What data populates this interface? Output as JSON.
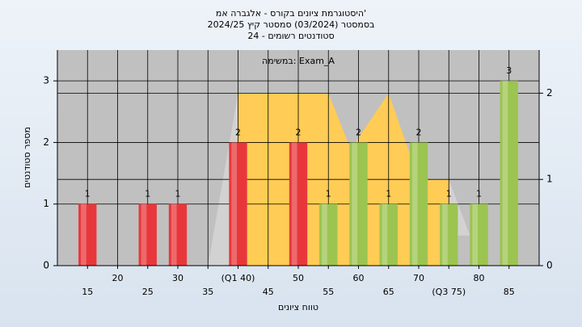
{
  "chart_data": {
    "type": "bar",
    "title_lines": [
      "היסטוגרמת ציונים בקורס - אלגברה אמ'",
      "בסמסטר (03/2024) סמסטר קיץ 2024/25",
      "סטודנטים רשומים - 24"
    ],
    "annotation": "במשימה: Exam_A",
    "x_label": "טווח ציונים",
    "y_label": "מספר סטודנטים",
    "x": [
      15,
      25,
      30,
      40,
      50,
      55,
      60,
      65,
      70,
      75,
      80,
      85
    ],
    "values": [
      1,
      1,
      1,
      2,
      2,
      1,
      2,
      1,
      2,
      1,
      1,
      3
    ],
    "colors": [
      "#e8373b",
      "#e8373b",
      "#e8373b",
      "#e8373b",
      "#e8373b",
      "#9cc450",
      "#9cc450",
      "#9cc450",
      "#9cc450",
      "#9cc450",
      "#9cc450",
      "#9cc450"
    ],
    "xlim": [
      10,
      90
    ],
    "xticks": [
      15,
      20,
      25,
      30,
      35,
      {
        "value": 40,
        "label": "(Q1 40)"
      },
      45,
      50,
      55,
      60,
      65,
      70,
      {
        "value": 75,
        "label": "(Q3 75)"
      },
      80,
      85
    ],
    "ylim": [
      0,
      3.5
    ],
    "yticks": [
      0,
      1,
      2,
      3
    ],
    "y2lim": [
      0,
      2.5
    ],
    "y2ticks": [
      0,
      1,
      2
    ],
    "grid": true,
    "bands": [
      {
        "color": "#ffcc55",
        "axis": "y2",
        "x": [
          40,
          40,
          55,
          58.7,
          65,
          68.5,
          71.5,
          75,
          75
        ],
        "values": [
          0,
          2,
          2,
          1.35,
          2,
          1.3,
          1,
          1,
          0
        ]
      },
      {
        "color": "#d2d2d2",
        "axis": "y2",
        "x": [
          35,
          40,
          40
        ],
        "values": [
          0,
          2,
          0
        ]
      },
      {
        "color": "#d2d2d2",
        "axis": "y2",
        "x": [
          75,
          78.5,
          75
        ],
        "values": [
          1,
          0.35,
          0.35
        ]
      }
    ]
  }
}
